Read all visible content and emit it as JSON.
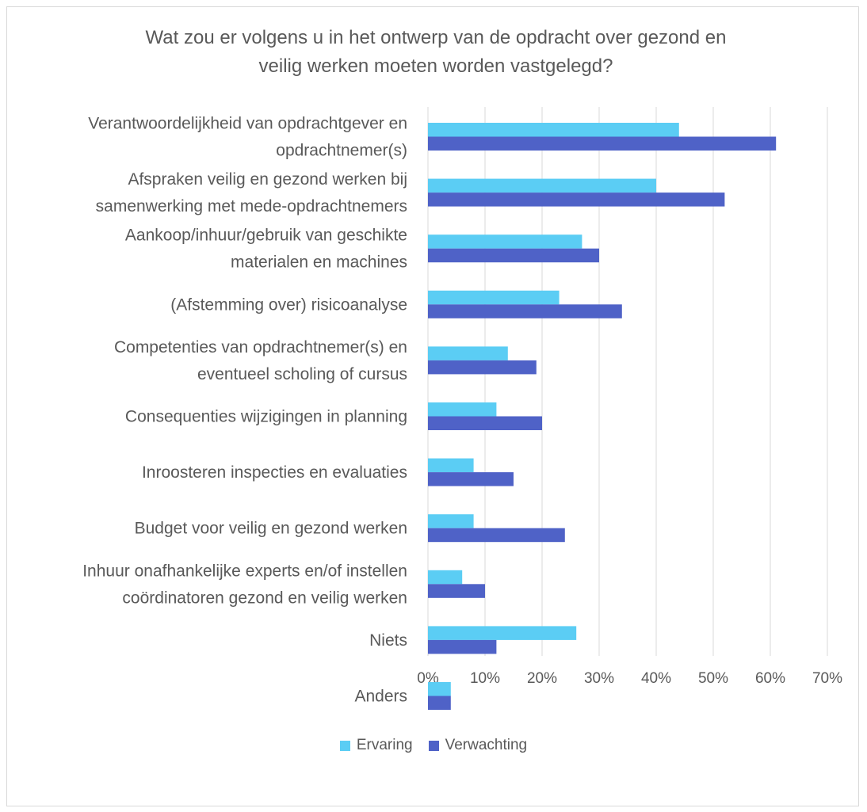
{
  "chart_data": {
    "type": "bar",
    "orientation": "horizontal",
    "title": [
      "Wat zou er volgens u in het ontwerp van de opdracht over gezond en",
      "veilig werken moeten worden vastgelegd?"
    ],
    "categories": [
      [
        "Verantwoordelijkheid van opdrachtgever en",
        "opdrachtnemer(s)"
      ],
      [
        "Afspraken veilig en gezond werken bij",
        "samenwerking met mede-opdrachtnemers"
      ],
      [
        "Aankoop/inhuur/gebruik van geschikte",
        "materialen en machines"
      ],
      [
        "(Afstemming over) risicoanalyse"
      ],
      [
        "Competenties van opdrachtnemer(s) en",
        "eventueel scholing of cursus"
      ],
      [
        "Consequenties wijzigingen in planning"
      ],
      [
        "Inroosteren inspecties en evaluaties"
      ],
      [
        "Budget voor veilig en gezond werken"
      ],
      [
        "Inhuur onafhankelijke experts en/of instellen",
        "coördinatoren gezond en veilig werken"
      ],
      [
        "Niets"
      ],
      [
        "Anders"
      ]
    ],
    "series": [
      {
        "name": "Ervaring",
        "color": "#5bcdf4",
        "values": [
          44,
          40,
          27,
          23,
          14,
          12,
          8,
          8,
          6,
          26,
          4
        ]
      },
      {
        "name": "Verwachting",
        "color": "#4f62c7",
        "values": [
          61,
          52,
          30,
          34,
          19,
          20,
          15,
          24,
          10,
          12,
          4
        ]
      }
    ],
    "xlim": [
      0,
      70
    ],
    "x_ticks": [
      "0%",
      "10%",
      "20%",
      "30%",
      "40%",
      "50%",
      "60%",
      "70%"
    ],
    "grid": true,
    "legend_position": "bottom"
  }
}
